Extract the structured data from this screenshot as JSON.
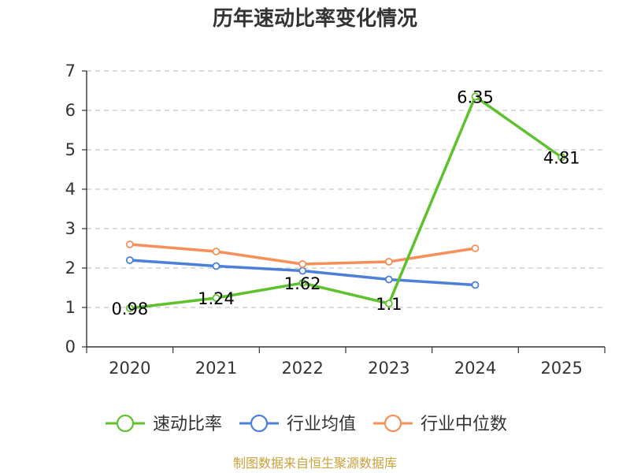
{
  "chart_data": {
    "type": "line",
    "title": "历年速动比率变化情况",
    "categories": [
      "2020",
      "2021",
      "2022",
      "2023",
      "2024",
      "2025"
    ],
    "ylim": [
      0,
      7
    ],
    "yticks": [
      "0",
      "1",
      "2",
      "3",
      "4",
      "5",
      "6",
      "7"
    ],
    "grid": true,
    "legend_position": "bottom",
    "series": [
      {
        "name": "速动比率",
        "color": "#5ec22e",
        "values": [
          0.98,
          1.24,
          1.62,
          1.1,
          6.35,
          4.81
        ],
        "labels": [
          "0.98",
          "1.24",
          "1.62",
          "1.1",
          "6.35",
          "4.81"
        ]
      },
      {
        "name": "行业均值",
        "color": "#4c7fd8",
        "values": [
          2.2,
          2.05,
          1.93,
          1.71,
          1.57,
          null
        ]
      },
      {
        "name": "行业中位数",
        "color": "#f5905a",
        "values": [
          2.6,
          2.42,
          2.1,
          2.16,
          2.5,
          null
        ]
      }
    ]
  },
  "footer": {
    "source": "制图数据来自恒生聚源数据库",
    "source_color": "#c9a23a"
  }
}
